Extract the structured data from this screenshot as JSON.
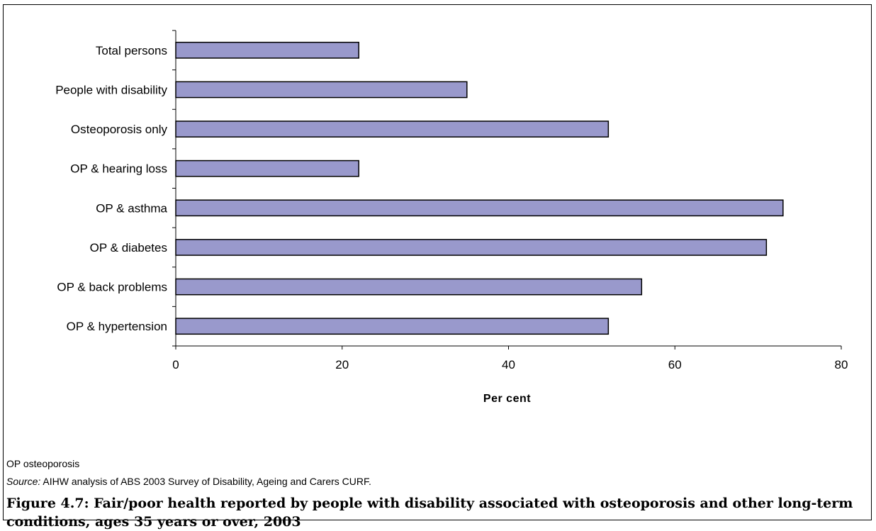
{
  "chart_data": {
    "type": "bar",
    "orientation": "horizontal",
    "categories": [
      "Total persons",
      "People with disability",
      "Osteoporosis only",
      "OP & hearing loss",
      "OP & asthma",
      "OP & diabetes",
      "OP & back problems",
      "OP & hypertension"
    ],
    "values": [
      22,
      35,
      52,
      22,
      73,
      71,
      56,
      52
    ],
    "xlabel": "Per cent",
    "ylabel": "",
    "xlim": [
      0,
      80
    ],
    "xticks": [
      "0",
      "20",
      "40",
      "60",
      "80"
    ],
    "grid": false,
    "legend": "none",
    "bar_color": "#9999cc"
  },
  "notes": {
    "abbreviation": "OP osteoporosis",
    "source_label": "Source:",
    "source_text": "AIHW analysis of ABS 2003 Survey of Disability, Ageing and Carers CURF."
  },
  "caption": "Figure 4.7: Fair/poor health reported by people with disability associated with osteoporosis and other long-term conditions, ages 35 years or over, 2003"
}
